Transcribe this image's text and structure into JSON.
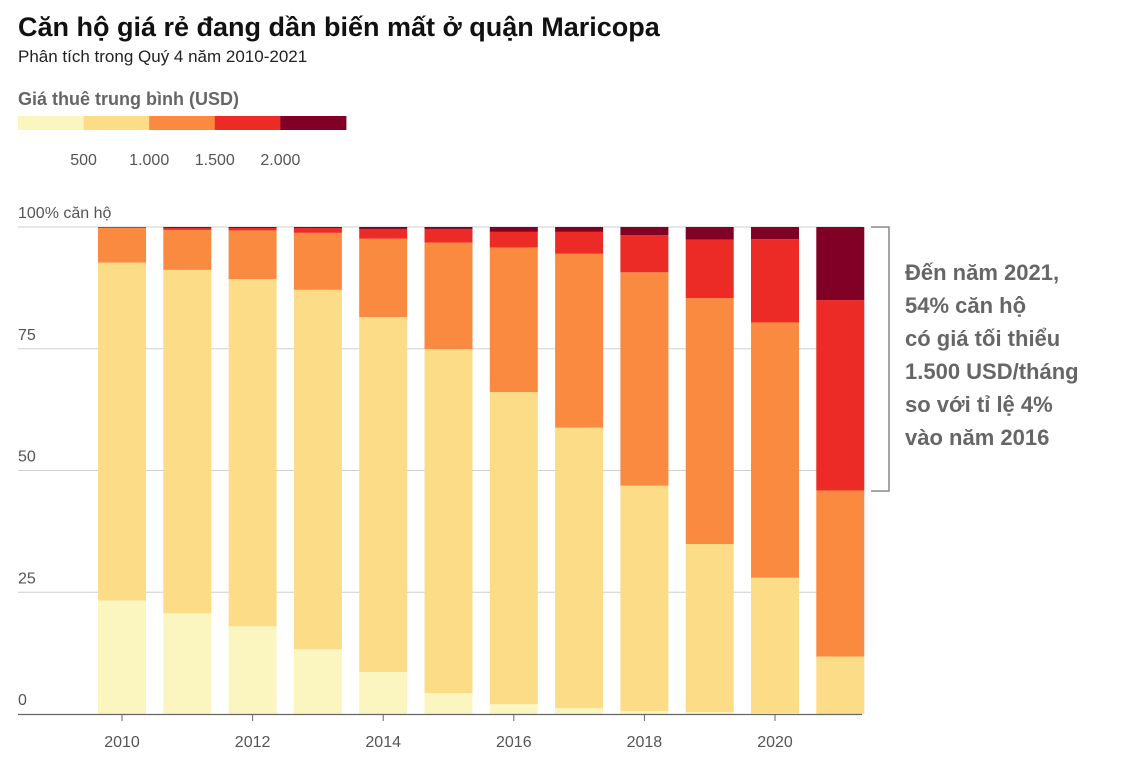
{
  "header": {
    "title": "Căn hộ giá rẻ đang dần biến mất ở quận Maricopa",
    "subtitle": "Phân tích trong Quý 4 năm 2010-2021"
  },
  "legend": {
    "title": "Giá thuê trung bình (USD)",
    "colors": [
      "#fbf5c0",
      "#fddc88",
      "#fa8a40",
      "#ec2b27",
      "#800026"
    ],
    "labels": [
      "500",
      "1.000",
      "1.500",
      "2.000"
    ]
  },
  "annotation": {
    "lines": [
      "Đến năm 2021,",
      "54% căn hộ",
      "có giá tối thiểu",
      "1.500 USD/tháng",
      "so với tỉ lệ 4%",
      "vào năm 2016"
    ]
  },
  "chart_data": {
    "type": "bar",
    "stacked": true,
    "title": "Căn hộ giá rẻ đang dần biến mất ở quận Maricopa",
    "ylabel": "100% căn hộ",
    "ylim": [
      0,
      100
    ],
    "y_ticks": [
      "100% căn hộ",
      "75",
      "50",
      "25",
      "0"
    ],
    "y_tick_values": [
      100,
      75,
      50,
      25,
      0
    ],
    "x": [
      2010,
      2011,
      2012,
      2013,
      2014,
      2015,
      2016,
      2017,
      2018,
      2019,
      2020,
      2021
    ],
    "x_tick_labels": [
      "2010",
      "2012",
      "2014",
      "2016",
      "2018",
      "2020"
    ],
    "x_tick_values": [
      2010,
      2012,
      2014,
      2016,
      2018,
      2020
    ],
    "series": [
      {
        "name": "< 500",
        "color": "#fbf5c0",
        "values": [
          23.3,
          20.7,
          18.0,
          13.3,
          8.6,
          4.3,
          2.0,
          1.2,
          0.6,
          0.4,
          0.2,
          0.0
        ]
      },
      {
        "name": "500–1.000",
        "color": "#fddc88",
        "values": [
          69.4,
          70.5,
          71.3,
          73.8,
          72.9,
          70.6,
          64.1,
          57.6,
          46.3,
          34.5,
          27.8,
          11.8
        ]
      },
      {
        "name": "1.000–1.500",
        "color": "#fa8a40",
        "values": [
          7.1,
          8.2,
          10.0,
          11.7,
          16.1,
          21.9,
          29.7,
          35.7,
          43.8,
          50.5,
          52.4,
          34.1
        ]
      },
      {
        "name": "1.500–2.000",
        "color": "#ec2b27",
        "values": [
          0.2,
          0.4,
          0.5,
          1.0,
          2.0,
          2.8,
          3.2,
          4.5,
          7.6,
          12.0,
          17.1,
          39.1
        ]
      },
      {
        "name": "> 2.000",
        "color": "#800026",
        "values": [
          0.0,
          0.2,
          0.2,
          0.2,
          0.4,
          0.4,
          1.0,
          1.0,
          1.7,
          2.6,
          2.5,
          15.0
        ]
      }
    ]
  }
}
